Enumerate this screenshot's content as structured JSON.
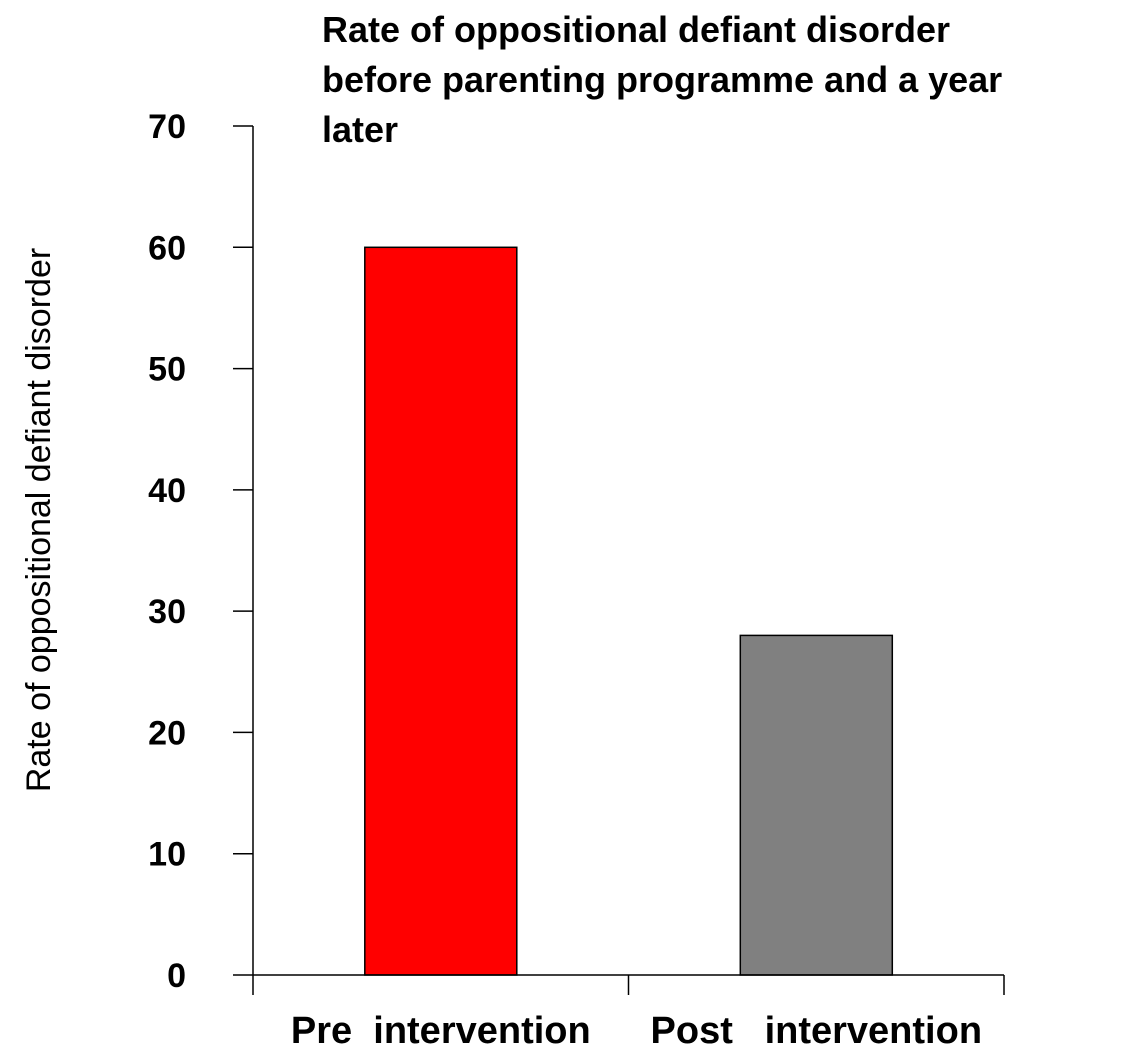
{
  "chart_data": {
    "type": "bar",
    "title_lines": [
      "Rate of oppositional defiant disorder",
      "before parenting programme and a year",
      "later"
    ],
    "ylabel": "Rate of oppositional defiant disorder",
    "categories": [
      "Pre  intervention",
      "Post   intervention"
    ],
    "values": [
      60,
      28
    ],
    "colors": [
      "#ff0000",
      "#808080"
    ],
    "ylim": [
      0,
      70
    ],
    "yticks": [
      0,
      10,
      20,
      30,
      40,
      50,
      60,
      70
    ],
    "grid": false,
    "legend": "none"
  }
}
